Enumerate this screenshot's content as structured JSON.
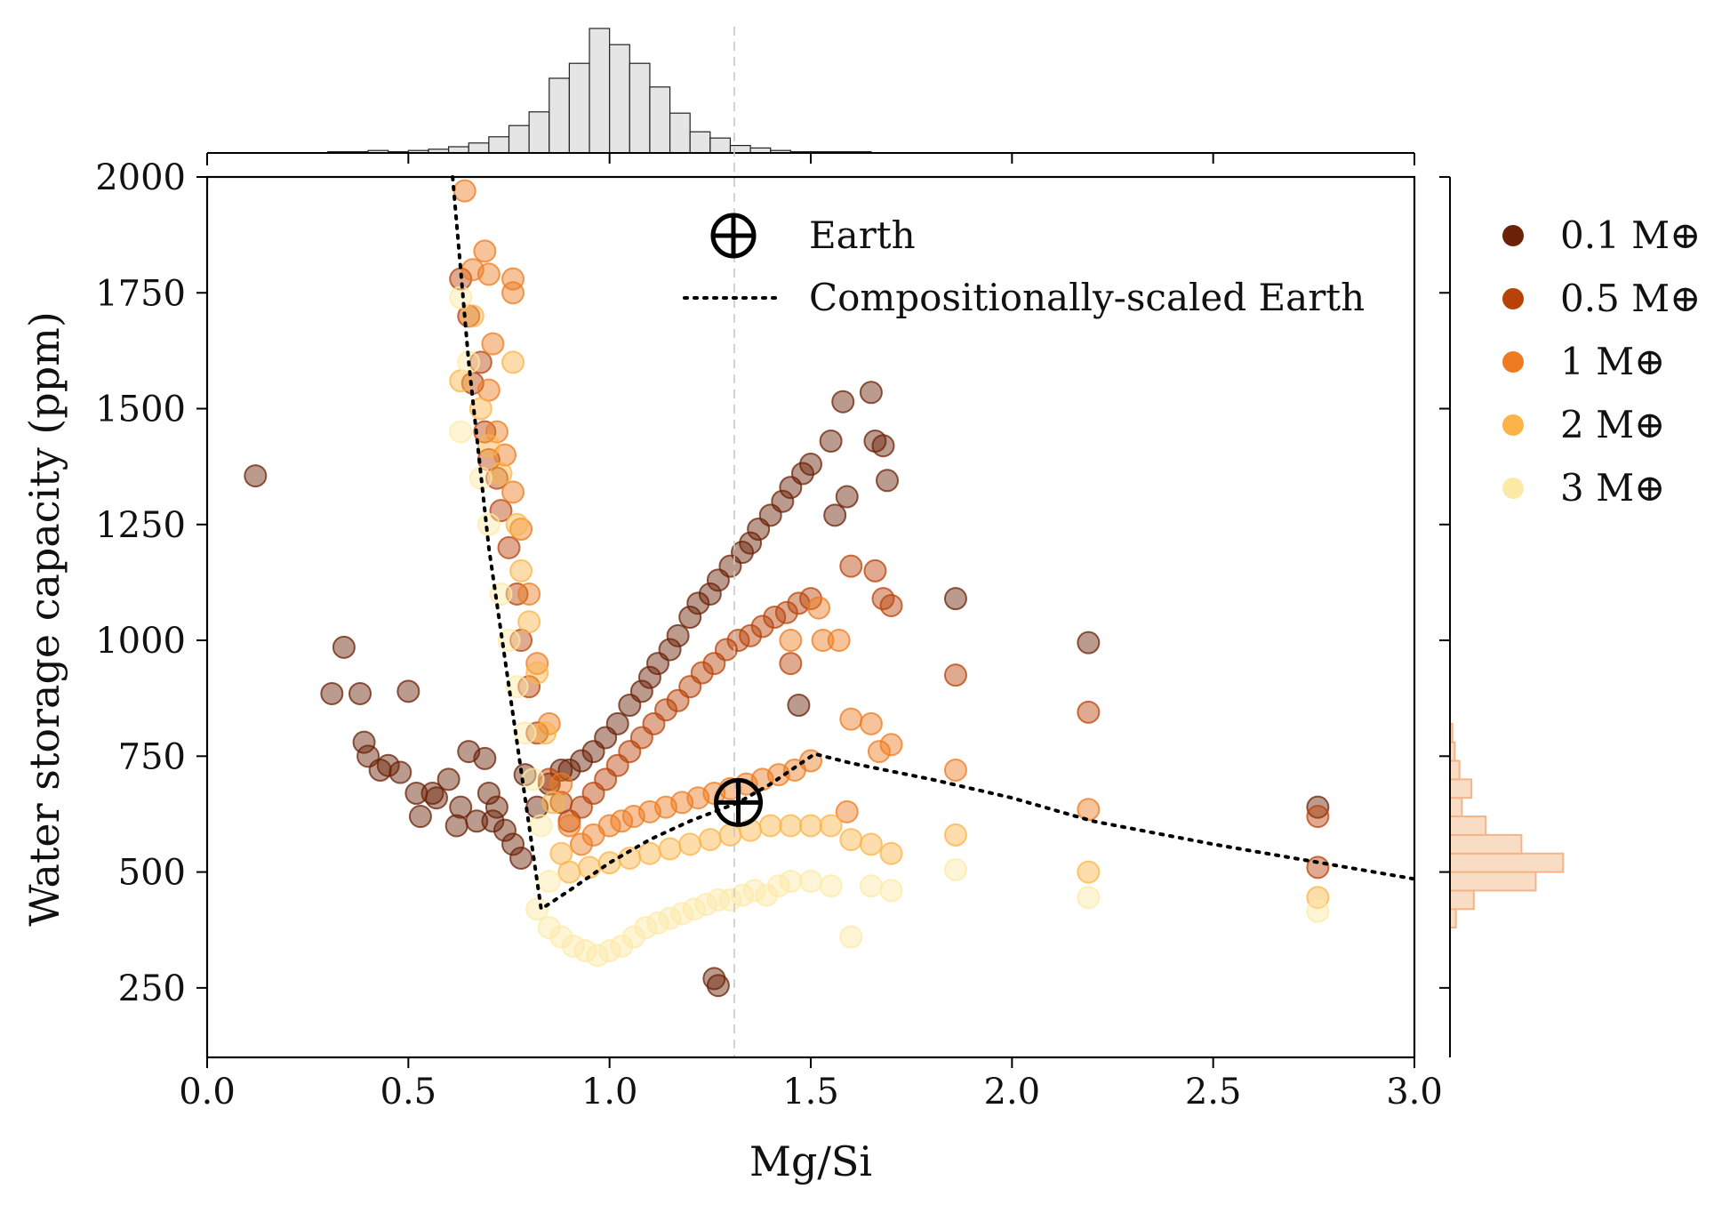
{
  "chart_data": {
    "type": "scatter",
    "xlabel": "Mg/Si",
    "ylabel": "Water storage capacity (ppm)",
    "xlim": [
      0.0,
      3.0
    ],
    "ylim": [
      100,
      2000
    ],
    "xticks": [
      "0.0",
      "0.5",
      "1.0",
      "1.5",
      "2.0",
      "2.5",
      "3.0"
    ],
    "yticks": [
      "250",
      "500",
      "750",
      "1000",
      "1250",
      "1500",
      "1750",
      "2000"
    ],
    "grid": false,
    "earth_marker": {
      "label": "Earth",
      "x": 1.32,
      "y": 650
    },
    "earth_reference_line_x": 1.31,
    "scaled_earth_curve": {
      "label": "Compositionally-scaled Earth",
      "x": [
        0.61,
        0.65,
        0.7,
        0.75,
        0.8,
        0.83,
        0.9,
        1.0,
        1.1,
        1.2,
        1.32,
        1.4,
        1.51,
        1.6,
        1.8,
        2.0,
        2.2,
        2.5,
        2.8,
        3.0
      ],
      "y": [
        2000,
        1600,
        1200,
        900,
        600,
        420,
        460,
        520,
        570,
        610,
        650,
        690,
        755,
        735,
        700,
        660,
        610,
        560,
        515,
        485
      ]
    },
    "legend": [
      {
        "label": "0.1 M⊕",
        "color": "#6b2207"
      },
      {
        "label": "0.5 M⊕",
        "color": "#b84308"
      },
      {
        "label": "1 M⊕",
        "color": "#ee7b1f"
      },
      {
        "label": "2 M⊕",
        "color": "#fbb448"
      },
      {
        "label": "3 M⊕",
        "color": "#fde9a6"
      }
    ],
    "series": [
      {
        "name": "0.1 M⊕",
        "color": "#6b2207",
        "points": [
          [
            0.12,
            1355
          ],
          [
            0.31,
            885
          ],
          [
            0.34,
            985
          ],
          [
            0.38,
            885
          ],
          [
            0.39,
            780
          ],
          [
            0.4,
            750
          ],
          [
            0.43,
            720
          ],
          [
            0.45,
            730
          ],
          [
            0.48,
            715
          ],
          [
            0.5,
            890
          ],
          [
            0.52,
            670
          ],
          [
            0.53,
            620
          ],
          [
            0.56,
            670
          ],
          [
            0.57,
            660
          ],
          [
            0.6,
            700
          ],
          [
            0.62,
            600
          ],
          [
            0.63,
            640
          ],
          [
            0.65,
            760
          ],
          [
            0.67,
            610
          ],
          [
            0.69,
            745
          ],
          [
            0.7,
            670
          ],
          [
            0.71,
            610
          ],
          [
            0.72,
            640
          ],
          [
            0.74,
            590
          ],
          [
            0.76,
            560
          ],
          [
            0.78,
            530
          ],
          [
            0.79,
            710
          ],
          [
            0.82,
            640
          ],
          [
            0.85,
            690
          ],
          [
            0.88,
            720
          ],
          [
            0.9,
            720
          ],
          [
            0.93,
            740
          ],
          [
            0.96,
            760
          ],
          [
            0.99,
            790
          ],
          [
            1.02,
            820
          ],
          [
            1.05,
            860
          ],
          [
            1.08,
            890
          ],
          [
            1.1,
            920
          ],
          [
            1.12,
            950
          ],
          [
            1.15,
            980
          ],
          [
            1.17,
            1010
          ],
          [
            1.2,
            1050
          ],
          [
            1.22,
            1080
          ],
          [
            1.25,
            1100
          ],
          [
            1.27,
            1130
          ],
          [
            1.3,
            1160
          ],
          [
            1.33,
            1190
          ],
          [
            1.35,
            1210
          ],
          [
            1.37,
            1240
          ],
          [
            1.4,
            1270
          ],
          [
            1.43,
            1300
          ],
          [
            1.45,
            1330
          ],
          [
            1.48,
            1360
          ],
          [
            1.5,
            1380
          ],
          [
            1.47,
            860
          ],
          [
            1.55,
            1430
          ],
          [
            1.58,
            1515
          ],
          [
            1.59,
            1310
          ],
          [
            1.56,
            1270
          ],
          [
            1.65,
            1535
          ],
          [
            1.66,
            1430
          ],
          [
            1.68,
            1420
          ],
          [
            1.69,
            1345
          ],
          [
            1.86,
            1090
          ],
          [
            2.19,
            995
          ],
          [
            2.76,
            640
          ],
          [
            1.26,
            270
          ],
          [
            1.27,
            255
          ]
        ]
      },
      {
        "name": "0.5 M⊕",
        "color": "#b84308",
        "points": [
          [
            0.63,
            1780
          ],
          [
            0.65,
            1700
          ],
          [
            0.66,
            1555
          ],
          [
            0.68,
            1600
          ],
          [
            0.69,
            1450
          ],
          [
            0.7,
            1390
          ],
          [
            0.72,
            1350
          ],
          [
            0.73,
            1280
          ],
          [
            0.75,
            1200
          ],
          [
            0.77,
            1100
          ],
          [
            0.78,
            1000
          ],
          [
            0.8,
            900
          ],
          [
            0.82,
            800
          ],
          [
            0.85,
            700
          ],
          [
            0.88,
            650
          ],
          [
            0.9,
            610
          ],
          [
            0.93,
            640
          ],
          [
            0.96,
            670
          ],
          [
            0.99,
            700
          ],
          [
            1.02,
            730
          ],
          [
            1.05,
            760
          ],
          [
            1.08,
            790
          ],
          [
            1.11,
            820
          ],
          [
            1.14,
            850
          ],
          [
            1.17,
            870
          ],
          [
            1.2,
            900
          ],
          [
            1.23,
            930
          ],
          [
            1.26,
            950
          ],
          [
            1.29,
            980
          ],
          [
            1.32,
            1000
          ],
          [
            1.35,
            1010
          ],
          [
            1.38,
            1030
          ],
          [
            1.41,
            1050
          ],
          [
            1.44,
            1060
          ],
          [
            1.47,
            1080
          ],
          [
            1.5,
            1090
          ],
          [
            1.45,
            950
          ],
          [
            1.6,
            1160
          ],
          [
            1.66,
            1150
          ],
          [
            1.68,
            1090
          ],
          [
            1.7,
            1075
          ],
          [
            1.86,
            925
          ],
          [
            2.19,
            845
          ],
          [
            2.76,
            620
          ],
          [
            2.76,
            510
          ]
        ]
      },
      {
        "name": "1 M⊕",
        "color": "#ee7b1f",
        "points": [
          [
            0.64,
            1970
          ],
          [
            0.66,
            1800
          ],
          [
            0.69,
            1840
          ],
          [
            0.7,
            1790
          ],
          [
            0.71,
            1640
          ],
          [
            0.76,
            1780
          ],
          [
            0.76,
            1750
          ],
          [
            0.7,
            1540
          ],
          [
            0.72,
            1450
          ],
          [
            0.74,
            1400
          ],
          [
            0.76,
            1320
          ],
          [
            0.78,
            1240
          ],
          [
            0.8,
            1100
          ],
          [
            0.82,
            950
          ],
          [
            0.85,
            820
          ],
          [
            0.88,
            690
          ],
          [
            0.9,
            600
          ],
          [
            0.93,
            560
          ],
          [
            0.96,
            580
          ],
          [
            1.0,
            600
          ],
          [
            1.03,
            610
          ],
          [
            1.06,
            620
          ],
          [
            1.1,
            630
          ],
          [
            1.14,
            640
          ],
          [
            1.18,
            650
          ],
          [
            1.22,
            660
          ],
          [
            1.26,
            670
          ],
          [
            1.3,
            680
          ],
          [
            1.34,
            690
          ],
          [
            1.38,
            700
          ],
          [
            1.42,
            710
          ],
          [
            1.46,
            720
          ],
          [
            1.5,
            740
          ],
          [
            1.45,
            1000
          ],
          [
            1.52,
            1070
          ],
          [
            1.53,
            1000
          ],
          [
            1.57,
            1000
          ],
          [
            1.6,
            830
          ],
          [
            1.65,
            820
          ],
          [
            1.67,
            760
          ],
          [
            1.7,
            775
          ],
          [
            1.59,
            630
          ],
          [
            1.86,
            720
          ],
          [
            2.19,
            635
          ]
        ]
      },
      {
        "name": "2 M⊕",
        "color": "#fbb448",
        "points": [
          [
            0.63,
            1560
          ],
          [
            0.66,
            1700
          ],
          [
            0.68,
            1500
          ],
          [
            0.7,
            1420
          ],
          [
            0.73,
            1360
          ],
          [
            0.76,
            1600
          ],
          [
            0.77,
            1250
          ],
          [
            0.78,
            1150
          ],
          [
            0.8,
            1040
          ],
          [
            0.82,
            930
          ],
          [
            0.84,
            800
          ],
          [
            0.86,
            650
          ],
          [
            0.88,
            540
          ],
          [
            0.9,
            500
          ],
          [
            0.95,
            510
          ],
          [
            1.0,
            520
          ],
          [
            1.05,
            530
          ],
          [
            1.1,
            540
          ],
          [
            1.15,
            550
          ],
          [
            1.2,
            560
          ],
          [
            1.25,
            570
          ],
          [
            1.3,
            580
          ],
          [
            1.35,
            590
          ],
          [
            1.4,
            600
          ],
          [
            1.45,
            600
          ],
          [
            1.5,
            600
          ],
          [
            1.55,
            600
          ],
          [
            1.6,
            570
          ],
          [
            1.65,
            560
          ],
          [
            1.7,
            540
          ],
          [
            1.86,
            580
          ],
          [
            2.19,
            500
          ],
          [
            2.76,
            445
          ]
        ]
      },
      {
        "name": "3 M⊕",
        "color": "#fde9a6",
        "points": [
          [
            0.63,
            1740
          ],
          [
            0.65,
            1600
          ],
          [
            0.63,
            1450
          ],
          [
            0.68,
            1350
          ],
          [
            0.7,
            1250
          ],
          [
            0.73,
            1100
          ],
          [
            0.75,
            1000
          ],
          [
            0.77,
            900
          ],
          [
            0.79,
            800
          ],
          [
            0.81,
            700
          ],
          [
            0.83,
            600
          ],
          [
            0.85,
            480
          ],
          [
            0.82,
            420
          ],
          [
            0.85,
            380
          ],
          [
            0.88,
            360
          ],
          [
            0.91,
            340
          ],
          [
            0.94,
            330
          ],
          [
            0.97,
            320
          ],
          [
            1.0,
            330
          ],
          [
            1.03,
            340
          ],
          [
            1.06,
            360
          ],
          [
            1.09,
            380
          ],
          [
            1.12,
            390
          ],
          [
            1.15,
            400
          ],
          [
            1.18,
            410
          ],
          [
            1.21,
            420
          ],
          [
            1.24,
            430
          ],
          [
            1.27,
            440
          ],
          [
            1.3,
            440
          ],
          [
            1.33,
            450
          ],
          [
            1.36,
            460
          ],
          [
            1.39,
            450
          ],
          [
            1.42,
            470
          ],
          [
            1.45,
            480
          ],
          [
            1.5,
            480
          ],
          [
            1.55,
            470
          ],
          [
            1.6,
            360
          ],
          [
            1.65,
            470
          ],
          [
            1.7,
            460
          ],
          [
            1.86,
            505
          ],
          [
            2.19,
            445
          ],
          [
            2.76,
            415
          ]
        ]
      }
    ],
    "marginal_histogram_x": {
      "bin_width": 0.05,
      "bin_start": 0.3,
      "counts": [
        0.01,
        0.01,
        0.02,
        0.01,
        0.02,
        0.03,
        0.05,
        0.08,
        0.13,
        0.22,
        0.33,
        0.6,
        0.72,
        1.0,
        0.87,
        0.72,
        0.53,
        0.32,
        0.17,
        0.12,
        0.06,
        0.04,
        0.02,
        0.01,
        0.01,
        0.01,
        0.01
      ]
    },
    "marginal_histogram_y": {
      "bins_lo": [
        380,
        420,
        460,
        500,
        540,
        580,
        620,
        660,
        700,
        740,
        780
      ],
      "counts": [
        0.05,
        0.2,
        0.72,
        0.95,
        0.6,
        0.3,
        0.1,
        0.18,
        0.08,
        0.04,
        0.02
      ]
    }
  }
}
